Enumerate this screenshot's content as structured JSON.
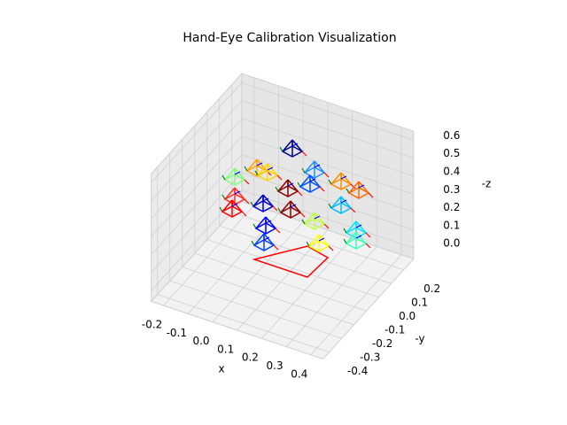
{
  "chart_data": {
    "type": "scatter3d",
    "title": "Hand-Eye Calibration Visualization",
    "xlabel": "x",
    "ylabel": "-y",
    "zlabel": "-z",
    "xlim": [
      -0.25,
      0.45
    ],
    "ylim": [
      -0.45,
      0.28
    ],
    "zlim": [
      -0.06,
      0.65
    ],
    "xticks": [
      -0.2,
      -0.1,
      {
        "value": 0,
        "label": "0.0"
      },
      0.1,
      0.2,
      0.3,
      0.4
    ],
    "yticks": [
      0.2,
      0.1,
      {
        "value": 0,
        "label": "0.0"
      },
      -0.1,
      -0.2,
      -0.3,
      -0.4
    ],
    "zticks": [
      {
        "value": 0,
        "label": "0.0"
      },
      0.1,
      0.2,
      0.3,
      0.4,
      0.5,
      0.6
    ],
    "grid": true
  }
}
